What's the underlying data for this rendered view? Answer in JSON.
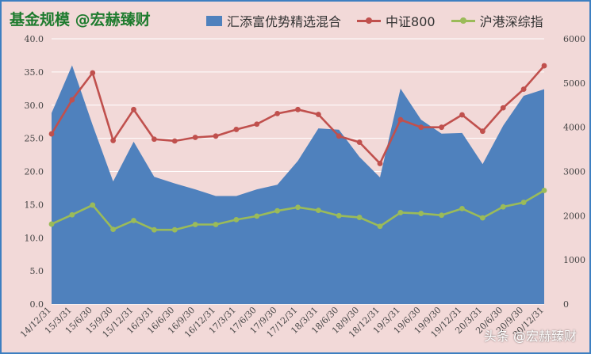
{
  "title": "基金规模 @宏赫臻财",
  "watermark": "头条 @宏赫臻财",
  "colors": {
    "area": "#4f81bd",
    "csi800": "#c0504d",
    "hk_index": "#9bbb59",
    "background": "#f2d9d8",
    "grid": "#ffffff"
  },
  "chart_data": {
    "type": "area",
    "categories": [
      "14/12/31",
      "15/3/31",
      "15/6/30",
      "15/9/30",
      "15/12/31",
      "16/3/31",
      "16/6/30",
      "16/9/30",
      "16/12/31",
      "17/3/31",
      "17/6/30",
      "17/9/30",
      "17/12/31",
      "18/3/31",
      "18/6/30",
      "18/9/30",
      "18/12/31",
      "19/3/31",
      "19/6/30",
      "19/9/30",
      "19/12/31",
      "20/3/31",
      "20/6/30",
      "20/9/30",
      "20/12/31"
    ],
    "left_axis": {
      "min": 0,
      "max": 40,
      "step": 5,
      "tick_labels": [
        "0.0",
        "5.0",
        "10.0",
        "15.0",
        "20.0",
        "25.0",
        "30.0",
        "35.0",
        "40.0"
      ]
    },
    "right_axis": {
      "min": 0,
      "max": 6000,
      "step": 1000,
      "tick_labels": [
        "0",
        "1000",
        "2000",
        "3000",
        "4000",
        "5000",
        "6000"
      ]
    },
    "grid": true,
    "legend_position": "top",
    "series": [
      {
        "name": "汇添富优势精选混合",
        "kind": "area",
        "axis": "left",
        "values": [
          28.8,
          36.0,
          27.0,
          18.5,
          24.5,
          19.2,
          18.2,
          17.3,
          16.3,
          16.3,
          17.3,
          18.0,
          21.6,
          26.5,
          26.3,
          22.2,
          19.1,
          32.5,
          27.8,
          25.7,
          25.8,
          21.1,
          26.9,
          31.4,
          32.4
        ]
      },
      {
        "name": "中证800",
        "kind": "line",
        "axis": "right",
        "values": [
          3850,
          4620,
          5230,
          3700,
          4400,
          3730,
          3690,
          3770,
          3800,
          3950,
          4070,
          4310,
          4400,
          4290,
          3800,
          3660,
          3180,
          4170,
          4000,
          4000,
          4280,
          3910,
          4440,
          4860,
          5390
        ]
      },
      {
        "name": "沪港深综指",
        "kind": "line",
        "axis": "right",
        "values": [
          1810,
          2020,
          2240,
          1690,
          1890,
          1680,
          1680,
          1800,
          1800,
          1910,
          1990,
          2110,
          2190,
          2120,
          2000,
          1960,
          1760,
          2070,
          2050,
          2010,
          2160,
          1950,
          2200,
          2300,
          2570
        ]
      }
    ]
  }
}
